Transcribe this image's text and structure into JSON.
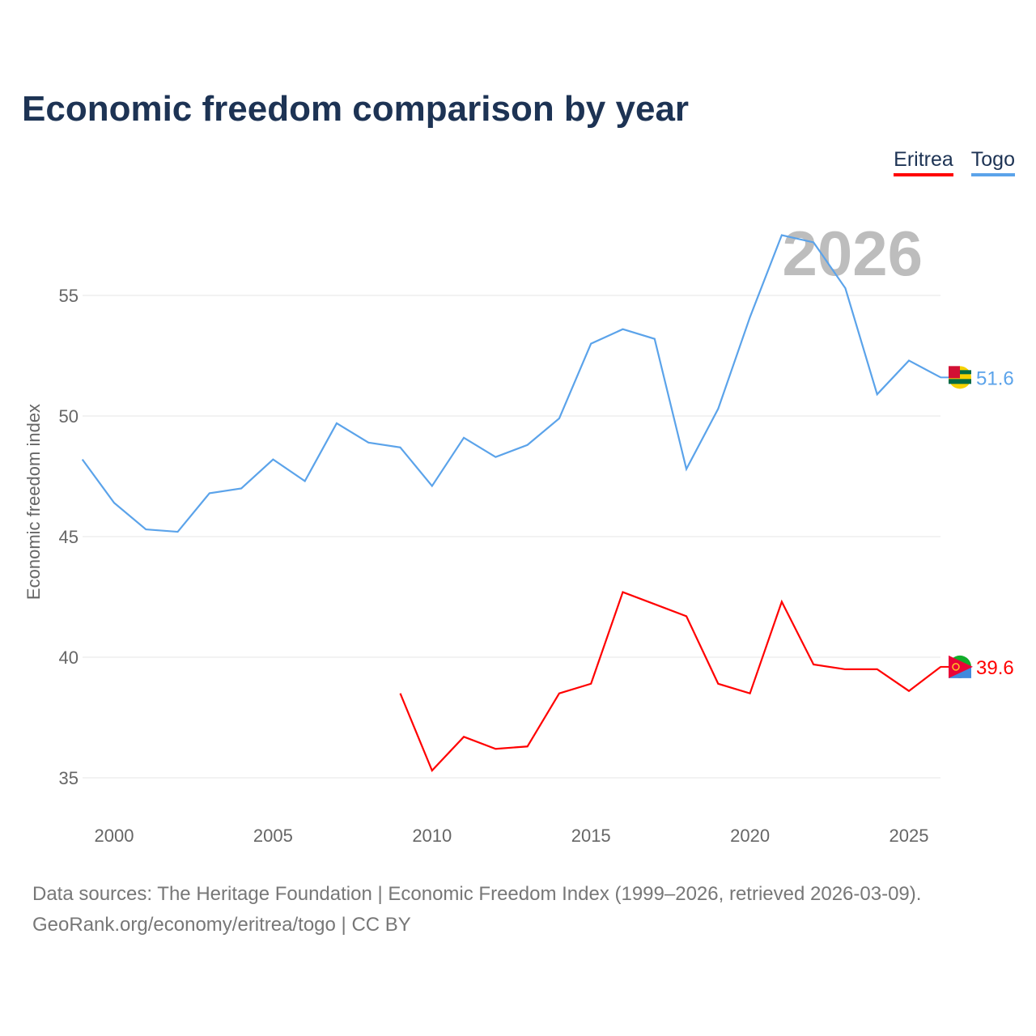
{
  "title": "Economic freedom comparison by year",
  "footer": {
    "line1": "Data sources: The Heritage Foundation | Economic Freedom Index (1999–2026, retrieved 2026-03-09).",
    "line2": "GeoRank.org/economy/eritrea/togo | CC BY"
  },
  "chart_data": {
    "type": "line",
    "title": "Economic freedom comparison by year",
    "xlabel": "",
    "ylabel": "Economic freedom index",
    "xlim": [
      1999,
      2026
    ],
    "ylim": [
      33.5,
      58.5
    ],
    "x_ticks": [
      2000,
      2005,
      2010,
      2015,
      2020,
      2025
    ],
    "y_ticks": [
      35,
      40,
      45,
      50,
      55
    ],
    "grid": true,
    "legend_position": "top-right",
    "year_watermark": "2026",
    "series": [
      {
        "name": "Eritrea",
        "color": "#ff0000",
        "end_label": "39.6",
        "x": [
          2009,
          2010,
          2011,
          2012,
          2013,
          2014,
          2015,
          2016,
          2017,
          2018,
          2019,
          2020,
          2021,
          2022,
          2023,
          2024,
          2025,
          2026
        ],
        "values": [
          38.5,
          35.3,
          36.7,
          36.2,
          36.3,
          38.5,
          38.9,
          42.7,
          42.2,
          41.7,
          38.9,
          38.5,
          42.3,
          39.7,
          39.5,
          39.5,
          38.6,
          39.6
        ]
      },
      {
        "name": "Togo",
        "color": "#5ba3ea",
        "end_label": "51.6",
        "x": [
          1999,
          2000,
          2001,
          2002,
          2003,
          2004,
          2005,
          2006,
          2007,
          2008,
          2009,
          2010,
          2011,
          2012,
          2013,
          2014,
          2015,
          2016,
          2017,
          2018,
          2019,
          2020,
          2021,
          2022,
          2023,
          2024,
          2025,
          2026
        ],
        "values": [
          48.2,
          46.4,
          45.3,
          45.2,
          46.8,
          47.0,
          48.2,
          47.3,
          49.7,
          48.9,
          48.7,
          47.1,
          49.1,
          48.3,
          48.8,
          49.9,
          53.0,
          53.6,
          53.2,
          47.8,
          50.3,
          54.1,
          57.5,
          57.2,
          55.3,
          50.9,
          52.3,
          51.6
        ]
      }
    ]
  }
}
